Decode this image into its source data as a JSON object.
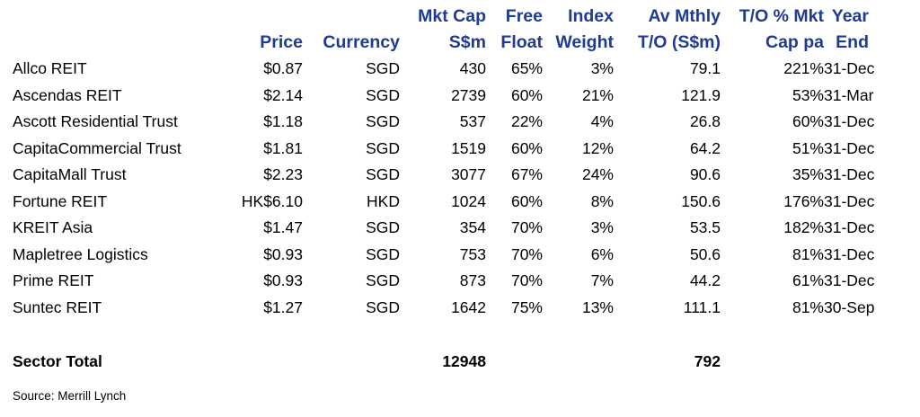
{
  "table": {
    "header_line1": [
      "",
      "",
      "",
      "Mkt Cap",
      "Free",
      "Index",
      "Av Mthly",
      "T/O % Mkt",
      "Year"
    ],
    "header_line2": [
      "",
      "Price",
      "Currency",
      "S$m",
      "Float",
      "Weight",
      "T/O (S$m)",
      "Cap pa",
      "End"
    ],
    "rows": [
      [
        "Allco REIT",
        "$0.87",
        "SGD",
        "430",
        "65%",
        "3%",
        "79.1",
        "221%",
        "31-Dec"
      ],
      [
        "Ascendas REIT",
        "$2.14",
        "SGD",
        "2739",
        "60%",
        "21%",
        "121.9",
        "53%",
        "31-Mar"
      ],
      [
        "Ascott Residential Trust",
        "$1.18",
        "SGD",
        "537",
        "22%",
        "4%",
        "26.8",
        "60%",
        "31-Dec"
      ],
      [
        "CapitaCommercial Trust",
        "$1.81",
        "SGD",
        "1519",
        "60%",
        "12%",
        "64.2",
        "51%",
        "31-Dec"
      ],
      [
        "CapitaMall Trust",
        "$2.23",
        "SGD",
        "3077",
        "67%",
        "24%",
        "90.6",
        "35%",
        "31-Dec"
      ],
      [
        "Fortune REIT",
        "HK$6.10",
        "HKD",
        "1024",
        "60%",
        "8%",
        "150.6",
        "176%",
        "31-Dec"
      ],
      [
        "KREIT Asia",
        "$1.47",
        "SGD",
        "354",
        "70%",
        "3%",
        "53.5",
        "182%",
        "31-Dec"
      ],
      [
        "Mapletree Logistics",
        "$0.93",
        "SGD",
        "753",
        "70%",
        "6%",
        "50.6",
        "81%",
        "31-Dec"
      ],
      [
        "Prime REIT",
        "$0.93",
        "SGD",
        "873",
        "70%",
        "7%",
        "44.2",
        "61%",
        "31-Dec"
      ],
      [
        "Suntec REIT",
        "$1.27",
        "SGD",
        "1642",
        "75%",
        "13%",
        "111.1",
        "81%",
        "30-Sep"
      ]
    ],
    "total": {
      "label": "Sector Total",
      "mkt_cap": "12948",
      "av_mthly_to": "792"
    }
  },
  "source_note": "Source: Merrill Lynch",
  "colors": {
    "header_text": "#1f3b92",
    "body_text": "#000000"
  }
}
